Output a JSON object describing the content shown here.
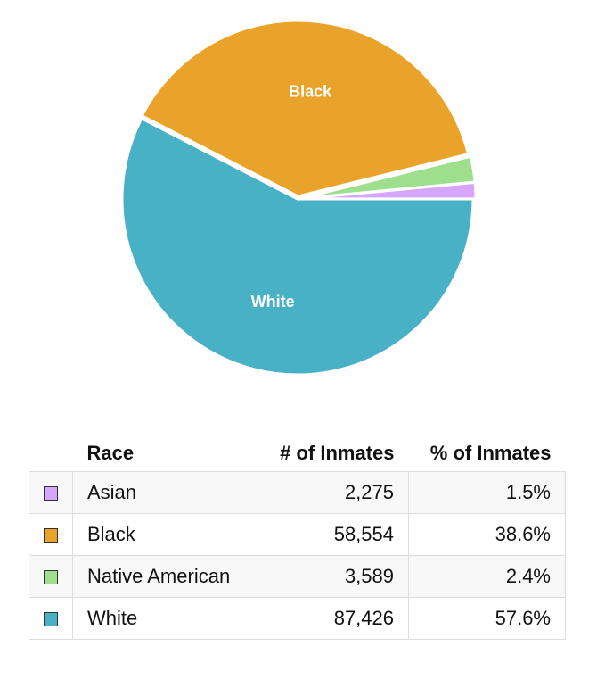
{
  "chart_data": {
    "type": "pie",
    "slices": [
      {
        "label": "Asian",
        "value": 2275,
        "percent": "1.5%",
        "count": "2,275",
        "color": "#d5a6fb",
        "show_label": false
      },
      {
        "label": "Native American",
        "value": 3589,
        "percent": "2.4%",
        "count": "3,589",
        "color": "#9ddf8c",
        "show_label": false
      },
      {
        "label": "Black",
        "value": 58554,
        "percent": "38.6%",
        "count": "58,554",
        "color": "#e9a32a",
        "show_label": true
      },
      {
        "label": "White",
        "value": 87426,
        "percent": "57.6%",
        "count": "87,426",
        "color": "#48b1c5",
        "show_label": true
      }
    ],
    "start": "3 o'clock, counterclockwise"
  },
  "table": {
    "headers": [
      "Race",
      "# of Inmates",
      "% of Inmates"
    ],
    "rows": [
      {
        "race": "Asian",
        "count": "2,275",
        "pct": "1.5%",
        "color": "#d5a6fb"
      },
      {
        "race": "Black",
        "count": "58,554",
        "pct": "38.6%",
        "color": "#e9a32a"
      },
      {
        "race": "Native American",
        "count": "3,589",
        "pct": "2.4%",
        "color": "#9ddf8c"
      },
      {
        "race": "White",
        "count": "87,426",
        "pct": "57.6%",
        "color": "#48b1c5"
      }
    ]
  }
}
